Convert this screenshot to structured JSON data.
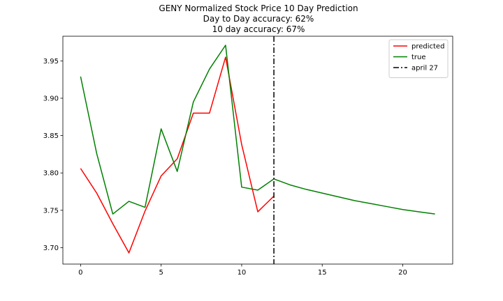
{
  "chart_data": {
    "type": "line",
    "title_lines": [
      "GENY Normalized Stock Price 10 Day Prediction",
      "Day to Day accuracy: 62%",
      "10 day accuracy: 67%"
    ],
    "xlabel": "",
    "ylabel": "",
    "xlim": [
      -1.1,
      23.1
    ],
    "ylim": [
      3.678,
      3.983
    ],
    "x_ticks": [
      0,
      5,
      10,
      15,
      20
    ],
    "y_ticks": [
      3.7,
      3.75,
      3.8,
      3.85,
      3.9,
      3.95
    ],
    "y_tick_labels": [
      "3.70",
      "3.75",
      "3.80",
      "3.85",
      "3.90",
      "3.95"
    ],
    "grid": false,
    "legend_position": "top-right",
    "series": [
      {
        "name": "predicted",
        "color": "#ff0000",
        "style": "solid",
        "x": [
          0,
          1,
          2,
          3,
          4,
          5,
          6,
          7,
          8,
          9,
          10,
          11,
          12
        ],
        "y": [
          3.806,
          3.773,
          3.732,
          3.693,
          3.749,
          3.796,
          3.819,
          3.88,
          3.88,
          3.955,
          3.838,
          3.748,
          3.769
        ]
      },
      {
        "name": "true",
        "color": "#008000",
        "style": "solid",
        "x": [
          0,
          1,
          2,
          3,
          4,
          5,
          6,
          7,
          8,
          9,
          10,
          11,
          12,
          13,
          14,
          15,
          16,
          17,
          18,
          19,
          20,
          21,
          22
        ],
        "y": [
          3.929,
          3.826,
          3.745,
          3.762,
          3.754,
          3.859,
          3.802,
          3.895,
          3.939,
          3.971,
          3.781,
          3.777,
          3.792,
          3.784,
          3.778,
          3.773,
          3.768,
          3.763,
          3.759,
          3.755,
          3.751,
          3.748,
          3.745
        ]
      }
    ],
    "vlines": [
      {
        "name": "april 27",
        "x": 12,
        "color": "#000000",
        "style": "dashdot"
      }
    ]
  }
}
